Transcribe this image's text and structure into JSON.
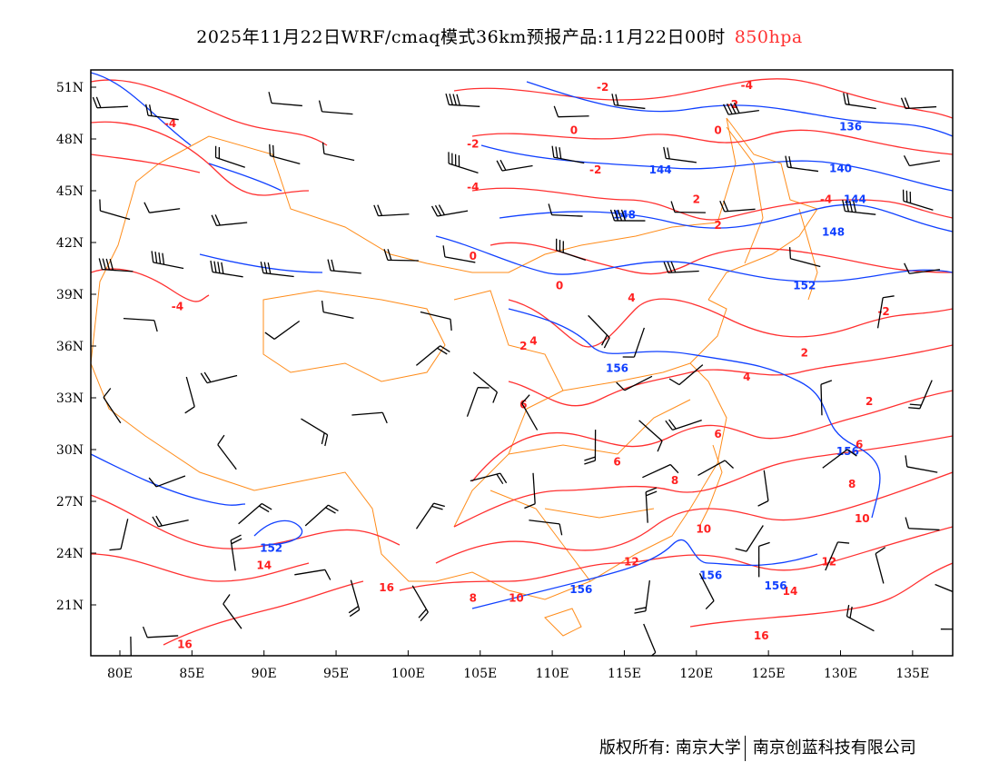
{
  "title": {
    "text": "2025年11月22日WRF/cmaq模式36km预报产品:11月22日00时",
    "level": "850hpa"
  },
  "footer": {
    "owner": "版权所有: 南京大学",
    "company": "南京创蓝科技有限公司"
  },
  "colors": {
    "temperature": "#ff3030",
    "height": "#1040ff",
    "border": "#ff8c1a",
    "barb": "#000000"
  },
  "map": {
    "lon_range": [
      78,
      138
    ],
    "lat_range": [
      18,
      52
    ],
    "lon_ticks": [
      "80E",
      "85E",
      "90E",
      "95E",
      "100E",
      "105E",
      "110E",
      "115E",
      "120E",
      "125E",
      "130E",
      "135E"
    ],
    "lat_ticks": [
      "51N",
      "48N",
      "45N",
      "42N",
      "39N",
      "36N",
      "33N",
      "30N",
      "27N",
      "24N",
      "21N"
    ],
    "temp_labels": [
      {
        "t": "-4",
        "lon": 83.5,
        "lat": 48.9
      },
      {
        "t": "-2",
        "lon": 113.5,
        "lat": 51
      },
      {
        "t": "-4",
        "lon": 123.5,
        "lat": 51.1
      },
      {
        "t": "-2",
        "lon": 122.5,
        "lat": 50
      },
      {
        "t": "0",
        "lon": 111.5,
        "lat": 48.5
      },
      {
        "t": "-2",
        "lon": 104.5,
        "lat": 47.7
      },
      {
        "t": "0",
        "lon": 121.5,
        "lat": 48.5
      },
      {
        "t": "-2",
        "lon": 113,
        "lat": 46.2
      },
      {
        "t": "-4",
        "lon": 104.5,
        "lat": 45.2
      },
      {
        "t": "2",
        "lon": 120,
        "lat": 44.5
      },
      {
        "t": "-4",
        "lon": 129,
        "lat": 44.5
      },
      {
        "t": "2",
        "lon": 121.5,
        "lat": 43
      },
      {
        "t": "0",
        "lon": 104.5,
        "lat": 41.2
      },
      {
        "t": "0",
        "lon": 110.5,
        "lat": 39.5
      },
      {
        "t": "4",
        "lon": 115.5,
        "lat": 38.8
      },
      {
        "t": "-4",
        "lon": 84,
        "lat": 38.3
      },
      {
        "t": "-2",
        "lon": 133,
        "lat": 38
      },
      {
        "t": "2",
        "lon": 108,
        "lat": 36
      },
      {
        "t": "4",
        "lon": 108.7,
        "lat": 36.3
      },
      {
        "t": "2",
        "lon": 127.5,
        "lat": 35.6
      },
      {
        "t": "4",
        "lon": 123.5,
        "lat": 34.2
      },
      {
        "t": "6",
        "lon": 108,
        "lat": 32.6
      },
      {
        "t": "2",
        "lon": 132,
        "lat": 32.8
      },
      {
        "t": "6",
        "lon": 121.5,
        "lat": 30.9
      },
      {
        "t": "6",
        "lon": 114.5,
        "lat": 29.3
      },
      {
        "t": "8",
        "lon": 118.5,
        "lat": 28.2
      },
      {
        "t": "6",
        "lon": 131.3,
        "lat": 30.3
      },
      {
        "t": "8",
        "lon": 130.8,
        "lat": 28
      },
      {
        "t": "10",
        "lon": 131.5,
        "lat": 26
      },
      {
        "t": "10",
        "lon": 120.5,
        "lat": 25.4
      },
      {
        "t": "12",
        "lon": 115.5,
        "lat": 23.5
      },
      {
        "t": "12",
        "lon": 129.2,
        "lat": 23.5
      },
      {
        "t": "14",
        "lon": 90,
        "lat": 23.3
      },
      {
        "t": "14",
        "lon": 126.5,
        "lat": 21.8
      },
      {
        "t": "16",
        "lon": 98.5,
        "lat": 22
      },
      {
        "t": "8",
        "lon": 104.5,
        "lat": 21.4
      },
      {
        "t": "10",
        "lon": 107.5,
        "lat": 21.4
      },
      {
        "t": "16",
        "lon": 124.5,
        "lat": 19.2
      },
      {
        "t": "16",
        "lon": 84.5,
        "lat": 18.7
      }
    ],
    "height_labels": [
      {
        "t": "136",
        "lon": 130.7,
        "lat": 48.7
      },
      {
        "t": "144",
        "lon": 117.5,
        "lat": 46.2
      },
      {
        "t": "140",
        "lon": 130,
        "lat": 46.3
      },
      {
        "t": "148",
        "lon": 115,
        "lat": 43.6
      },
      {
        "t": "144",
        "lon": 131,
        "lat": 44.5
      },
      {
        "t": "148",
        "lon": 129.5,
        "lat": 42.6
      },
      {
        "t": "152",
        "lon": 127.5,
        "lat": 39.5
      },
      {
        "t": "156",
        "lon": 114.5,
        "lat": 34.7
      },
      {
        "t": "156",
        "lon": 130.5,
        "lat": 29.9
      },
      {
        "t": "152",
        "lon": 90.5,
        "lat": 24.3
      },
      {
        "t": "156",
        "lon": 112,
        "lat": 21.9
      },
      {
        "t": "156",
        "lon": 121,
        "lat": 22.7
      },
      {
        "t": "156",
        "lon": 125.5,
        "lat": 22.1
      }
    ]
  }
}
